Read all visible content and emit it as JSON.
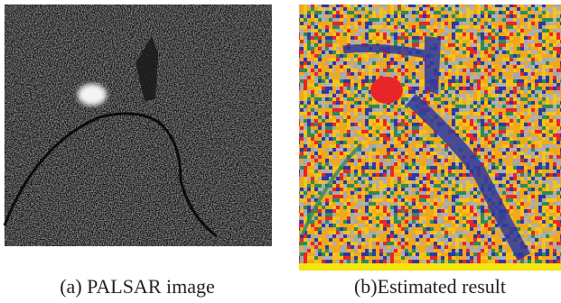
{
  "figure": {
    "panels": [
      {
        "caption": "(a) PALSAR image"
      },
      {
        "caption": "(b)Estimated result"
      }
    ]
  }
}
